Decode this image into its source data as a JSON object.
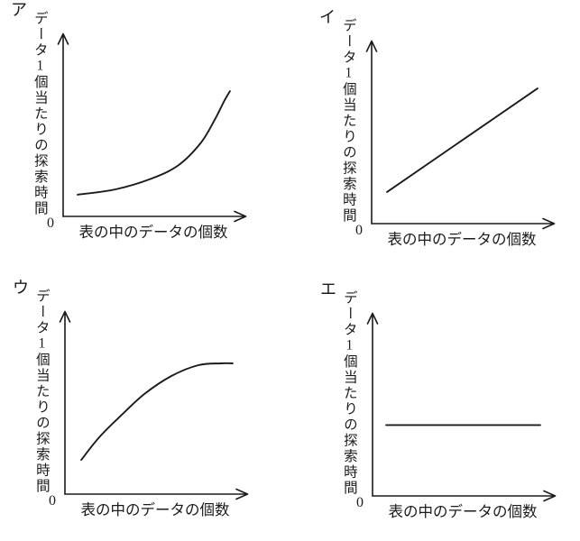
{
  "page": {
    "background": "#ffffff",
    "ink": "#1b1b1b",
    "description": "Four multiple-choice sketch graphs (options A/I/U/E in katakana) showing search time per data item vs number of data items in a table"
  },
  "axis_labels": {
    "y_parts": [
      "データ",
      "1",
      "個当たりの探索時間"
    ],
    "y_full": "データ1個当たりの探索時間",
    "x": "表の中のデータの個数",
    "origin": "0"
  },
  "chart_data": [
    {
      "option": "ア",
      "type": "line",
      "shape": "exponential-increase",
      "title": "",
      "xlabel": "表の中のデータの個数",
      "ylabel": "データ1個当たりの探索時間",
      "axis_ticks": "none (only origin labeled 0)",
      "x_range": [
        0,
        1
      ],
      "y_range": [
        0,
        1
      ],
      "points": [
        [
          0.08,
          0.118
        ],
        [
          0.289,
          0.147
        ],
        [
          0.488,
          0.206
        ],
        [
          0.637,
          0.279
        ],
        [
          0.761,
          0.402
        ],
        [
          0.836,
          0.525
        ],
        [
          0.886,
          0.623
        ],
        [
          0.92,
          0.681
        ]
      ]
    },
    {
      "option": "イ",
      "type": "line",
      "shape": "linear-increase",
      "title": "",
      "xlabel": "表の中のデータの個数",
      "ylabel": "データ1個当たりの探索時間",
      "axis_ticks": "none (only origin labeled 0)",
      "x_range": [
        0,
        1
      ],
      "y_range": [
        0,
        1
      ],
      "points": [
        [
          0.085,
          0.172
        ],
        [
          0.915,
          0.735
        ]
      ]
    },
    {
      "option": "ウ",
      "type": "line",
      "shape": "logarithmic-increase-saturating",
      "title": "",
      "xlabel": "表の中のデータの個数",
      "ylabel": "データ1個当たりの探索時間",
      "axis_ticks": "none (only origin labeled 0)",
      "x_range": [
        0,
        1
      ],
      "y_range": [
        0,
        1
      ],
      "points": [
        [
          0.09,
          0.186
        ],
        [
          0.189,
          0.309
        ],
        [
          0.313,
          0.431
        ],
        [
          0.438,
          0.544
        ],
        [
          0.587,
          0.642
        ],
        [
          0.736,
          0.701
        ],
        [
          0.861,
          0.711
        ],
        [
          0.925,
          0.711
        ]
      ]
    },
    {
      "option": "エ",
      "type": "line",
      "shape": "constant",
      "title": "",
      "xlabel": "表の中のデータの個数",
      "ylabel": "データ1個当たりの探索時間",
      "axis_ticks": "none (only origin labeled 0)",
      "x_range": [
        0,
        1
      ],
      "y_range": [
        0,
        1
      ],
      "points": [
        [
          0.075,
          0.385
        ],
        [
          0.925,
          0.385
        ]
      ]
    }
  ]
}
